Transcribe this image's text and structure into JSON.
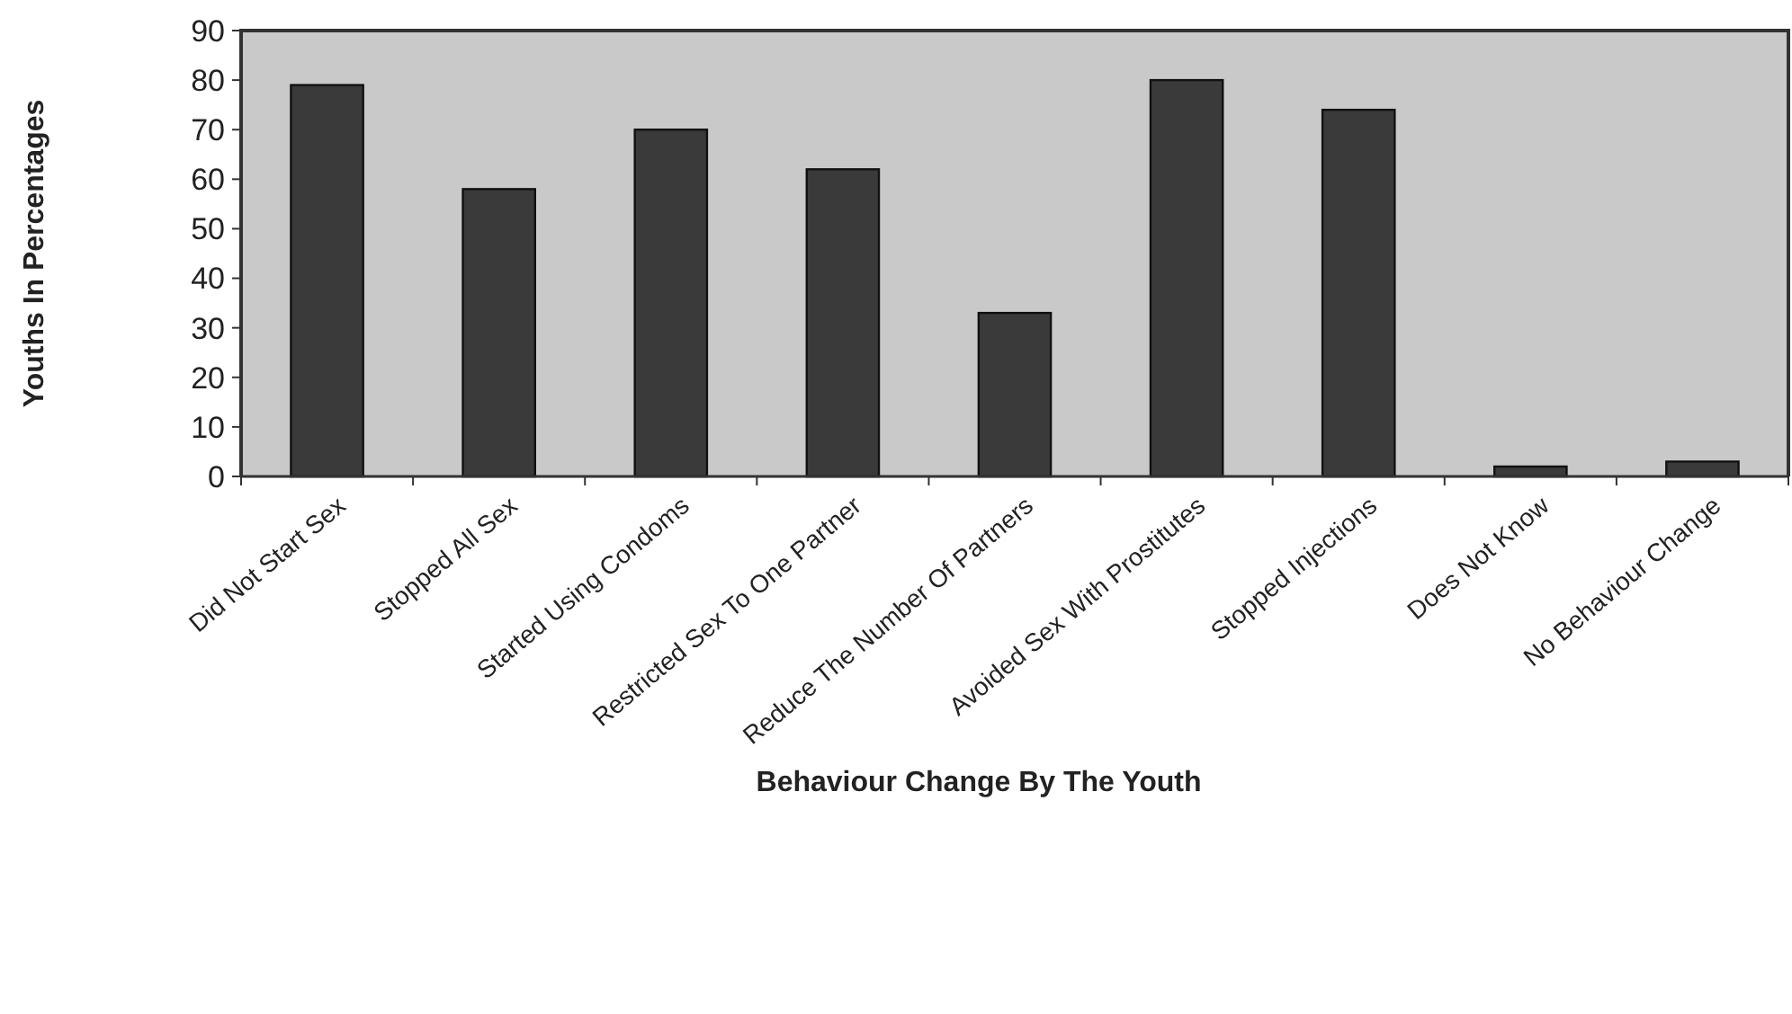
{
  "chart_data": {
    "type": "bar",
    "xlabel": "Behaviour Change By The Youth",
    "ylabel": "Youths In Percentages",
    "categories": [
      "Did Not Start Sex",
      "Stopped All Sex",
      "Started Using Condoms",
      "Restricted Sex To One Partner",
      "Reduce The Number Of Partners",
      "Avoided Sex With Prostitutes",
      "Stopped Injections",
      "Does Not Know",
      "No Behaviour Change"
    ],
    "values": [
      79,
      58,
      70,
      62,
      33,
      80,
      74,
      2,
      3
    ],
    "color": "#3a3a3a",
    "ylim": [
      0,
      90
    ],
    "yticks": [
      0,
      10,
      20,
      30,
      40,
      50,
      60,
      70,
      80,
      90
    ],
    "grid": false
  }
}
